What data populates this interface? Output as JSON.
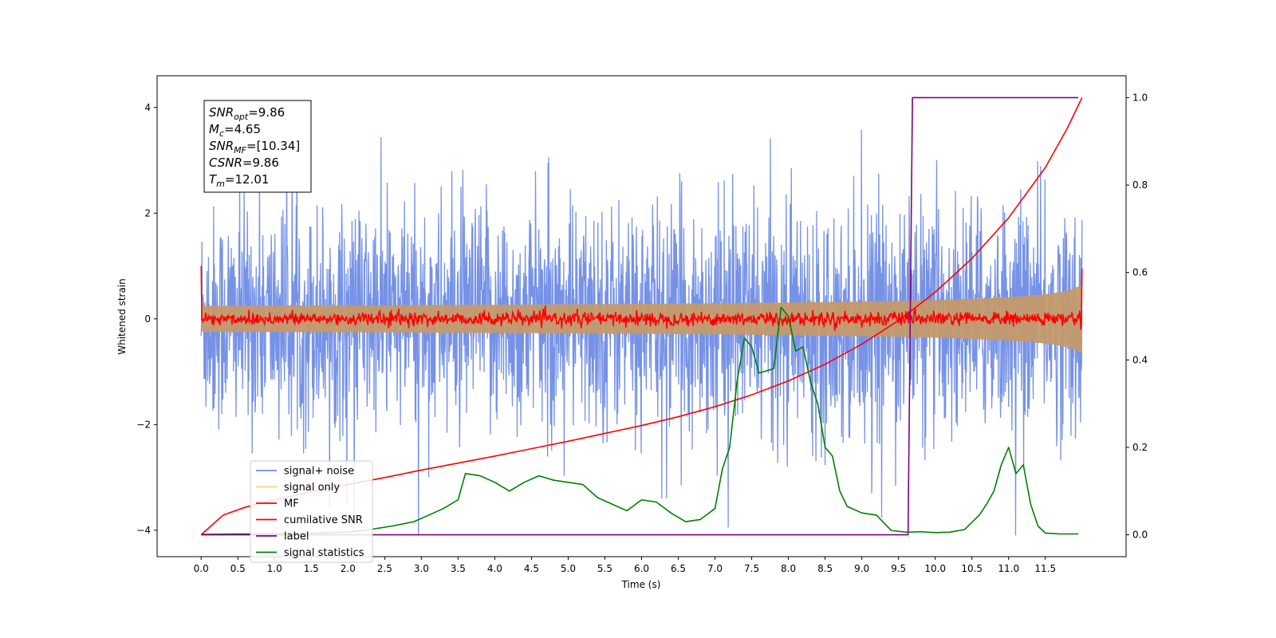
{
  "chart_data": {
    "type": "line",
    "xlabel": "Time (s)",
    "ylabel_left": "Whitened strain",
    "ylabel_right": "",
    "xlim": [
      -0.6,
      12.6
    ],
    "ylim_left": [
      -4.5,
      4.6
    ],
    "ylim_right": [
      -0.05,
      1.05
    ],
    "x_ticks": [
      "0.0",
      "0.5",
      "1.0",
      "1.5",
      "2.0",
      "2.5",
      "3.0",
      "3.5",
      "4.0",
      "4.5",
      "5.0",
      "5.5",
      "6.0",
      "6.5",
      "7.0",
      "7.5",
      "8.0",
      "8.5",
      "9.0",
      "9.5",
      "10.0",
      "10.5",
      "11.0",
      "11.5"
    ],
    "y_ticks_left": [
      "−4",
      "−2",
      "0",
      "2",
      "4"
    ],
    "y_ticks_right": [
      "0.0",
      "0.2",
      "0.4",
      "0.6",
      "0.8",
      "1.0"
    ],
    "grid": false,
    "legend_position": "lower-left",
    "annotation_lines": [
      {
        "name": "SNR",
        "sub": "opt",
        "value": "=9.86"
      },
      {
        "name": "M",
        "sub": "c",
        "value": "=4.65"
      },
      {
        "name": "SNR",
        "sub": "MF",
        "value": "=[10.34]"
      },
      {
        "name": "CSNR",
        "sub": "",
        "value": "=9.86"
      },
      {
        "name": "T",
        "sub": "m",
        "value": "=12.01"
      }
    ],
    "series": [
      {
        "name": "signal+ noise",
        "color": "#6f8ce6",
        "axis": "left",
        "kind": "noise-band",
        "x_range": [
          0.0,
          12.0
        ],
        "envelope": 2.6
      },
      {
        "name": "signal only",
        "color": "#c49a6c",
        "axis": "left",
        "kind": "chirp-envelope",
        "x_range": [
          0.0,
          12.0
        ],
        "end_amplitude": 0.65
      },
      {
        "name": "MF",
        "color": "#ff0000",
        "axis": "left",
        "kind": "noise-band",
        "x_range": [
          0.0,
          12.0
        ],
        "envelope": 0.12,
        "start_value": 1.0,
        "end_value": 0.95
      },
      {
        "name": "cumilative SNR",
        "color": "#ff0000",
        "axis": "right",
        "x": [
          0.0,
          0.3,
          0.6,
          1.0,
          1.5,
          2.0,
          2.5,
          3.0,
          3.5,
          4.0,
          4.5,
          5.0,
          5.5,
          6.0,
          6.5,
          7.0,
          7.5,
          8.0,
          8.5,
          9.0,
          9.5,
          10.0,
          10.5,
          11.0,
          11.5,
          11.8,
          12.0
        ],
        "y": [
          0.0,
          0.045,
          0.063,
          0.08,
          0.098,
          0.115,
          0.131,
          0.148,
          0.164,
          0.18,
          0.197,
          0.214,
          0.232,
          0.25,
          0.27,
          0.293,
          0.32,
          0.352,
          0.39,
          0.436,
          0.49,
          0.555,
          0.632,
          0.725,
          0.84,
          0.93,
          1.0
        ]
      },
      {
        "name": "label",
        "color": "#800080",
        "axis": "right",
        "x": [
          0.0,
          9.63,
          9.69,
          11.95
        ],
        "y": [
          0.0,
          0.0,
          1.0,
          1.0
        ]
      },
      {
        "name": "signal statistics",
        "color": "#008000",
        "axis": "right",
        "x": [
          0.0,
          0.5,
          1.0,
          1.5,
          2.0,
          2.3,
          2.6,
          2.9,
          3.1,
          3.3,
          3.5,
          3.6,
          3.8,
          4.0,
          4.2,
          4.4,
          4.6,
          4.8,
          5.0,
          5.2,
          5.4,
          5.6,
          5.8,
          6.0,
          6.2,
          6.4,
          6.6,
          6.8,
          7.0,
          7.1,
          7.2,
          7.3,
          7.4,
          7.5,
          7.6,
          7.8,
          7.9,
          8.0,
          8.1,
          8.2,
          8.3,
          8.4,
          8.5,
          8.6,
          8.7,
          8.8,
          9.0,
          9.2,
          9.4,
          9.6,
          9.8,
          10.0,
          10.2,
          10.4,
          10.6,
          10.7,
          10.8,
          10.9,
          11.0,
          11.1,
          11.2,
          11.3,
          11.4,
          11.5,
          11.7,
          11.95
        ],
        "y": [
          0.001,
          0.002,
          0.002,
          0.004,
          0.006,
          0.012,
          0.02,
          0.03,
          0.045,
          0.06,
          0.08,
          0.14,
          0.135,
          0.12,
          0.1,
          0.12,
          0.135,
          0.125,
          0.12,
          0.115,
          0.085,
          0.07,
          0.055,
          0.08,
          0.075,
          0.05,
          0.03,
          0.035,
          0.06,
          0.15,
          0.2,
          0.35,
          0.45,
          0.43,
          0.37,
          0.38,
          0.52,
          0.5,
          0.42,
          0.43,
          0.35,
          0.3,
          0.2,
          0.18,
          0.1,
          0.065,
          0.05,
          0.045,
          0.01,
          0.006,
          0.007,
          0.005,
          0.006,
          0.012,
          0.045,
          0.07,
          0.1,
          0.16,
          0.2,
          0.14,
          0.16,
          0.07,
          0.02,
          0.004,
          0.002,
          0.002
        ]
      }
    ]
  }
}
